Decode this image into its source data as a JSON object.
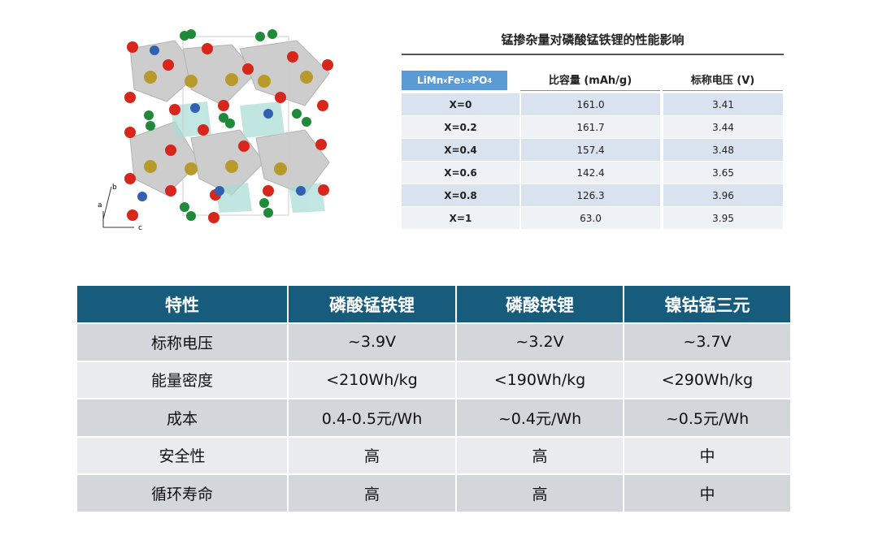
{
  "figure": {
    "axes": [
      "b",
      "a",
      "c"
    ]
  },
  "top_table": {
    "title": "锰掺杂量对磷酸锰铁锂的性能影响",
    "header_formula": [
      "LiMn",
      "x",
      "Fe",
      "1-x",
      "PO",
      "4"
    ],
    "header": [
      "比容量 (mAh/g)",
      "标称电压 (V)"
    ],
    "rows": [
      [
        "X=0",
        "161.0",
        "3.41"
      ],
      [
        "X=0.2",
        "161.7",
        "3.44"
      ],
      [
        "X=0.4",
        "157.4",
        "3.48"
      ],
      [
        "X=0.6",
        "142.4",
        "3.65"
      ],
      [
        "X=0.8",
        "126.3",
        "3.96"
      ],
      [
        "X=1",
        "63.0",
        "3.95"
      ]
    ]
  },
  "table": {
    "header": [
      "特性",
      "磷酸锰铁锂",
      "磷酸铁锂",
      "镍钴锰三元"
    ],
    "rows": [
      [
        "标称电压",
        "~3.9V",
        "~3.2V",
        "~3.7V"
      ],
      [
        "能量密度",
        "<210Wh/kg",
        "<190Wh/kg",
        "<290Wh/kg"
      ],
      [
        "成本",
        "0.4-0.5元/Wh",
        "~0.4元/Wh",
        "~0.5元/Wh"
      ],
      [
        "安全性",
        "高",
        "高",
        "中"
      ],
      [
        "循环寿命",
        "高",
        "高",
        "中"
      ]
    ]
  }
}
